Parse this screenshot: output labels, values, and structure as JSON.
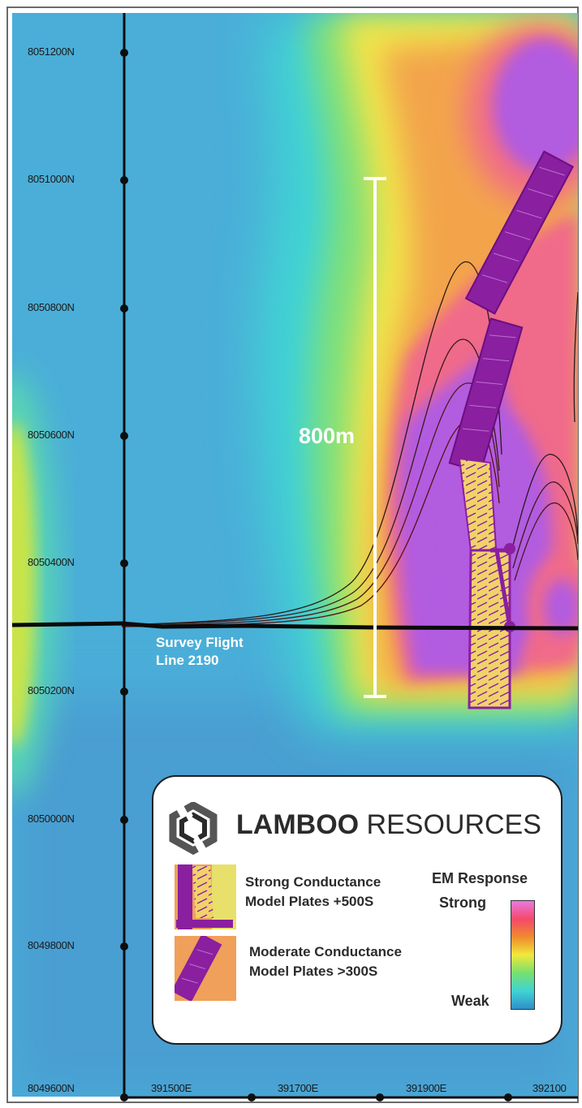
{
  "map": {
    "northing_labels": [
      "8051200N",
      "8051000N",
      "8050800N",
      "8050600N",
      "8050400N",
      "8050200N",
      "8050000N",
      "8049800N",
      "8049600N"
    ],
    "easting_labels": [
      "391500E",
      "391700E",
      "391900E",
      "392100"
    ],
    "scale_bar_label": "800m",
    "flight_line_label": "Survey Flight\nLine 2190"
  },
  "legend": {
    "company_bold": "LAMBOO",
    "company_rest": " RESOURCES",
    "items": [
      {
        "label": "Strong Conductance\nModel Plates +500S",
        "color": "#8a1fa0"
      },
      {
        "label": "Moderate Conductance\nModel Plates >300S",
        "color": "#8a1fa0"
      }
    ],
    "ramp_title": "EM Response",
    "ramp_high": "Strong",
    "ramp_low": "Weak",
    "ramp_colors": [
      "#e879e0",
      "#f4496a",
      "#f08a2e",
      "#f1e83a",
      "#76e070",
      "#3fd4d4",
      "#2f8fc8"
    ]
  },
  "colors": {
    "background_low": "#4aaed8",
    "anomaly_high": "#b25be0",
    "plate": "#8a1fa0"
  }
}
